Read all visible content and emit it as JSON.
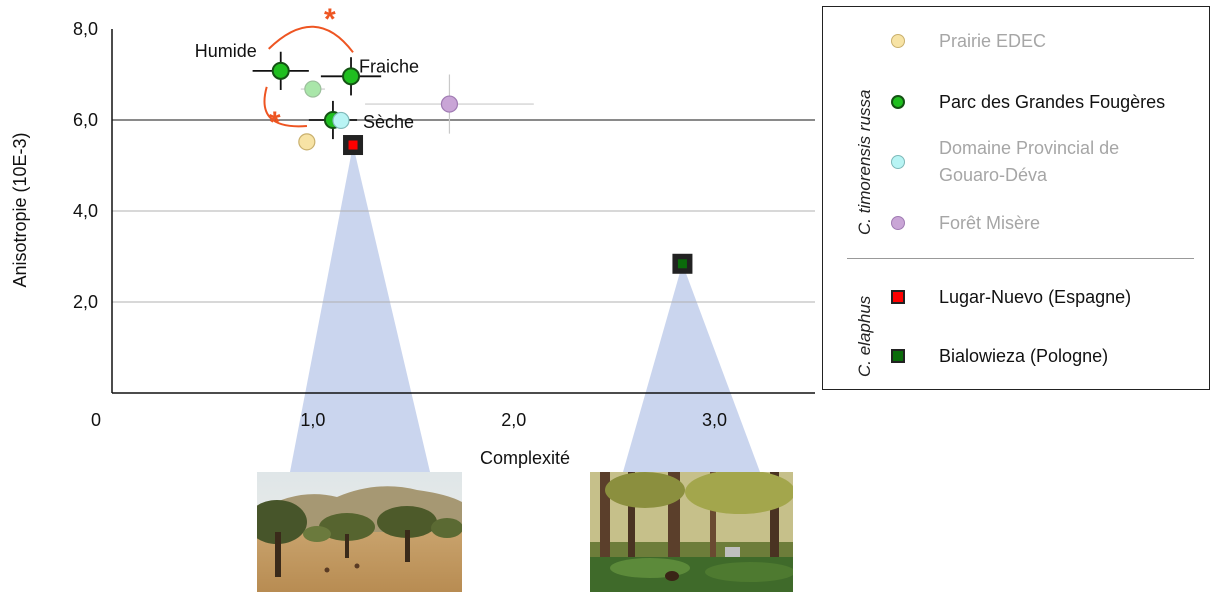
{
  "chart_data": {
    "type": "scatter",
    "title": "",
    "xlabel": "Complexité",
    "ylabel": "Anisotropie (10E-3)",
    "xlim": [
      0,
      3.5
    ],
    "ylim": [
      0,
      8.0
    ],
    "x_ticks": [
      "0",
      "1,0",
      "2,0",
      "3,0"
    ],
    "x_tick_values": [
      0,
      1.0,
      2.0,
      3.0
    ],
    "y_ticks": [
      "2,0",
      "4,0",
      "6,0",
      "8,0"
    ],
    "y_tick_values": [
      2.0,
      4.0,
      6.0,
      8.0
    ],
    "gridlines_y": [
      2.0,
      4.0,
      6.0
    ],
    "series": [
      {
        "name": "Prairie EDEC",
        "group": "C. timorensis russa",
        "marker": "circle",
        "color": "#f7e3a5",
        "stroke": "#c9b06d",
        "points": [
          {
            "x": 0.97,
            "y": 5.52,
            "xerr": 0.0,
            "yerr": 0.0
          }
        ]
      },
      {
        "name": "Parc des Grandes Fougères",
        "group": "C. timorensis russa",
        "marker": "circle",
        "color": "#1fbf1f",
        "stroke": "#145214",
        "points": [
          {
            "x": 0.84,
            "y": 7.08,
            "xerr": 0.14,
            "yerr": 0.42,
            "label": "Humide"
          },
          {
            "x": 1.19,
            "y": 6.96,
            "xerr": 0.15,
            "yerr": 0.42,
            "label": "Fraiche"
          },
          {
            "x": 1.1,
            "y": 6.0,
            "xerr": 0.12,
            "yerr": 0.42,
            "label": "Sèche"
          }
        ]
      },
      {
        "name": "Parc des Grandes Fougères (faded)",
        "group": "C. timorensis russa",
        "marker": "circle",
        "color": "#a9e6a9",
        "stroke": "#9bbf9b",
        "points": [
          {
            "x": 1.0,
            "y": 6.68,
            "xerr": 0.06,
            "yerr": 0.12
          }
        ]
      },
      {
        "name": "Domaine Provincial de Gouaro-Déva",
        "group": "C. timorensis russa",
        "marker": "circle",
        "color": "#b8f4f4",
        "stroke": "#7fb9b9",
        "points": [
          {
            "x": 1.14,
            "y": 5.99,
            "xerr": 0.0,
            "yerr": 0.0
          }
        ]
      },
      {
        "name": "Forêt Misère",
        "group": "C. timorensis russa",
        "marker": "circle",
        "color": "#c9a5d6",
        "stroke": "#a07bb3",
        "points": [
          {
            "x": 1.68,
            "y": 6.35,
            "xerr": 0.42,
            "yerr": 0.65
          }
        ]
      },
      {
        "name": "Lugar-Nuevo (Espagne)",
        "group": "C. elaphus",
        "marker": "square",
        "color": "#ff0000",
        "stroke": "#222222",
        "points": [
          {
            "x": 1.2,
            "y": 5.45,
            "xerr": 0.0,
            "yerr": 0.0
          }
        ]
      },
      {
        "name": "Bialowieza (Pologne)",
        "group": "C. elaphus",
        "marker": "square",
        "color": "#0b6b0b",
        "stroke": "#222222",
        "points": [
          {
            "x": 2.84,
            "y": 2.84,
            "xerr": 0.0,
            "yerr": 0.0
          }
        ]
      }
    ],
    "annotations": [
      {
        "text": "*",
        "color": "#ee5522",
        "between": [
          "Humide",
          "Fraiche"
        ]
      },
      {
        "text": "*",
        "color": "#ee5522",
        "between": [
          "Humide",
          "Sèche"
        ]
      }
    ],
    "legend": {
      "position": "right",
      "groups": [
        {
          "label": "C. timorensis russa",
          "items": [
            {
              "label_lines": [
                "Prairie EDEC"
              ],
              "text_color": "#a6a6a6",
              "marker": "circle",
              "color": "#f7e3a5",
              "stroke": "#c9b06d"
            },
            {
              "label_lines": [
                "Parc des Grandes Fougères"
              ],
              "text_color": "#111111",
              "marker": "circle",
              "color": "#1fbf1f",
              "stroke": "#145214"
            },
            {
              "label_lines": [
                "Domaine Provincial de",
                "Gouaro-Déva"
              ],
              "text_color": "#a6a6a6",
              "marker": "circle",
              "color": "#b8f4f4",
              "stroke": "#7fb9b9"
            },
            {
              "label_lines": [
                "Forêt Misère"
              ],
              "text_color": "#a6a6a6",
              "marker": "circle",
              "color": "#c9a5d6",
              "stroke": "#a07bb3"
            }
          ]
        },
        {
          "label": "C. elaphus",
          "items": [
            {
              "label_lines": [
                "Lugar-Nuevo (Espagne)"
              ],
              "text_color": "#111111",
              "marker": "square",
              "color": "#ff0000",
              "stroke": "#222222"
            },
            {
              "label_lines": [
                "Bialowieza (Pologne)"
              ],
              "text_color": "#111111",
              "marker": "square",
              "color": "#0b6b0b",
              "stroke": "#222222"
            }
          ]
        }
      ]
    },
    "photos": [
      {
        "name": "Lugar-Nuevo landscape photo",
        "linked_series": "Lugar-Nuevo (Espagne)"
      },
      {
        "name": "Bialowieza forest photo",
        "linked_series": "Bialowieza (Pologne)"
      }
    ],
    "colors": {
      "axis": "#111111",
      "grid": "#b0b0b0",
      "grid_dark": "#444444",
      "cone": "#9fb3e0",
      "asterisk": "#ee5522"
    }
  }
}
